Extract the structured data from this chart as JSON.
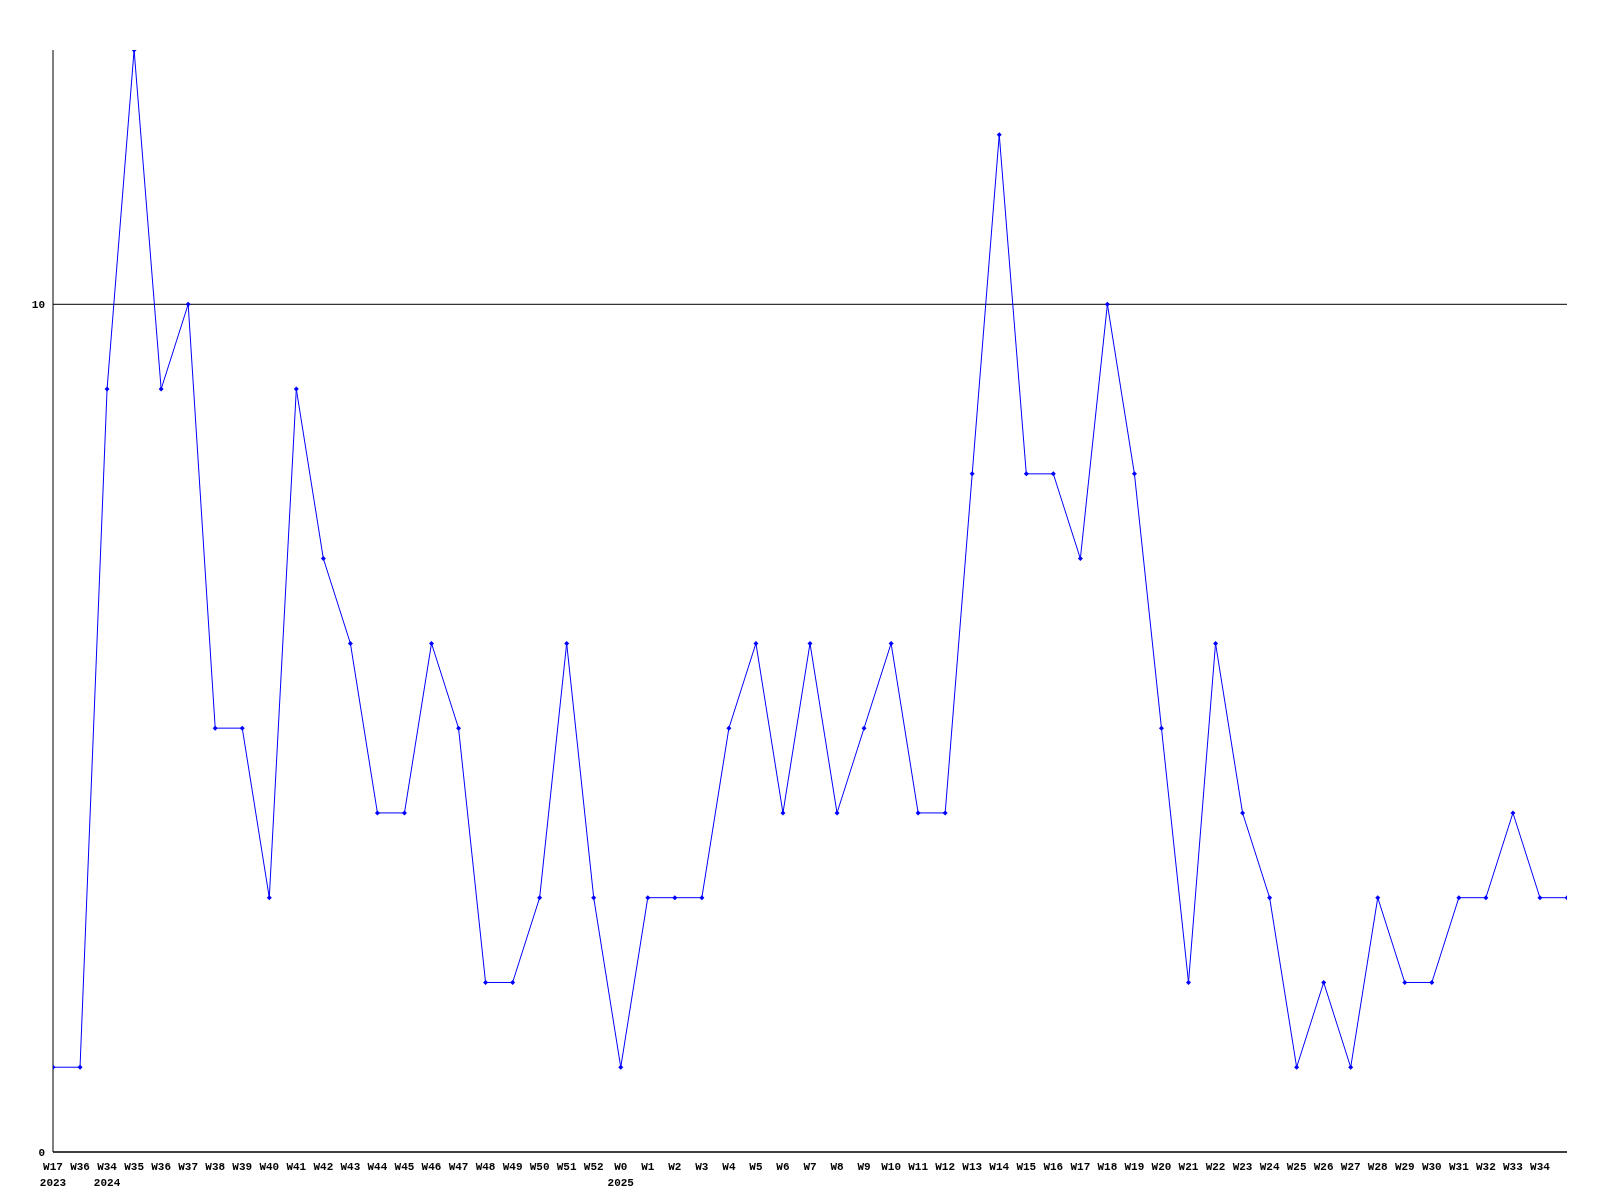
{
  "chart_data": {
    "type": "line",
    "categories": [
      "W17\n2023",
      "W36",
      "W34\n2024",
      "W35",
      "W36",
      "W37",
      "W38",
      "W39",
      "W40",
      "W41",
      "W42",
      "W43",
      "W44",
      "W45",
      "W46",
      "W47",
      "W48",
      "W49",
      "W50",
      "W51",
      "W52",
      "W0\n2025",
      "W1",
      "W2",
      "W3",
      "W4",
      "W5",
      "W6",
      "W7",
      "W8",
      "W9",
      "W10",
      "W11",
      "W12",
      "W13",
      "W14",
      "W15",
      "W16",
      "W17",
      "W18",
      "W19",
      "W20",
      "W21",
      "W22",
      "W23",
      "W24",
      "W25",
      "W26",
      "W27",
      "W28",
      "W29",
      "W30",
      "W31",
      "W32",
      "W33",
      "W34",
      null
    ],
    "series": [
      {
        "color": "#0000ff",
        "values": [
          1,
          1,
          9,
          13,
          9,
          10,
          5,
          5,
          3,
          9,
          7,
          6,
          4,
          4,
          6,
          5,
          2,
          2,
          3,
          6,
          3,
          1,
          3,
          3,
          3,
          5,
          6,
          4,
          6,
          4,
          5,
          6,
          4,
          4,
          8,
          12,
          8,
          8,
          7,
          10,
          8,
          5,
          2,
          6,
          4,
          3,
          1,
          2,
          1,
          3,
          2,
          2,
          3,
          3,
          4,
          3,
          3
        ]
      }
    ],
    "ylim": [
      0,
      13
    ],
    "yticks": [
      0,
      10
    ],
    "grid": "y",
    "marker": "diamond",
    "line_style": "solid"
  }
}
